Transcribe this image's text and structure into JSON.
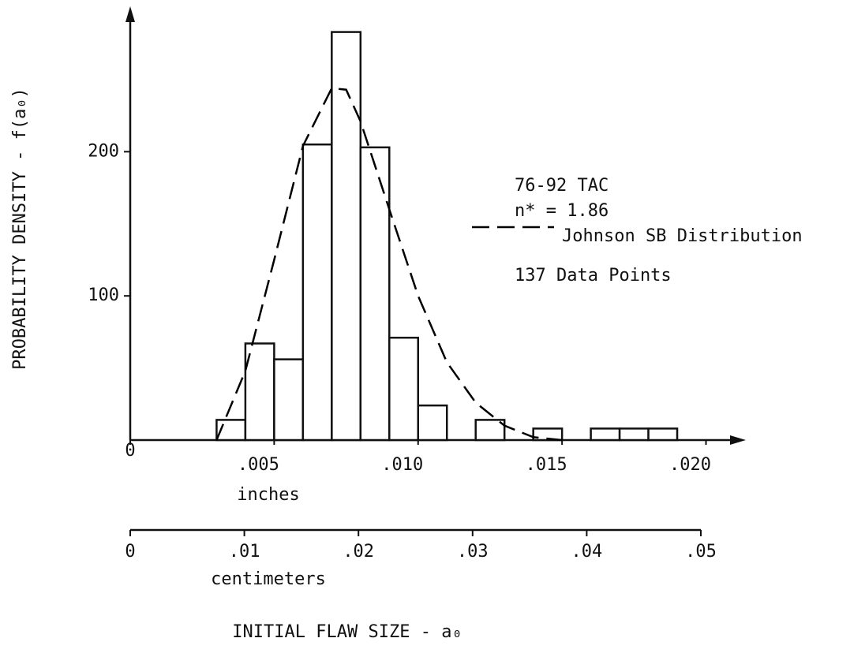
{
  "chart_data": {
    "type": "histogram",
    "bins": [
      0.003,
      0.004,
      0.005,
      0.006,
      0.007,
      0.008,
      0.009,
      0.01,
      0.011,
      0.012,
      0.013,
      0.014,
      0.015,
      0.016,
      0.017,
      0.018,
      0.019
    ],
    "values": [
      14,
      67,
      56,
      205,
      283,
      203,
      71,
      24,
      0,
      14,
      0,
      8,
      0,
      8,
      8,
      8
    ],
    "color": "#ffffff",
    "xlim": [
      0,
      0.021
    ],
    "xticks": [
      0,
      {
        "value": 0.005,
        "label": ".005"
      },
      {
        "value": 0.01,
        "label": ".010"
      },
      {
        "value": 0.015,
        "label": ".015"
      },
      {
        "value": 0.02,
        "label": ".020"
      }
    ],
    "x_label": "inches",
    "ylim": [
      0,
      297
    ],
    "yticks": [
      100,
      200
    ],
    "y_label": "PROBABILITY DENSITY - f(a₀)",
    "x2lim": [
      0,
      0.05
    ],
    "x2ticks": [
      0,
      {
        "value": 0.01,
        "label": ".01"
      },
      {
        "value": 0.02,
        "label": ".02"
      },
      {
        "value": 0.03,
        "label": ".03"
      },
      {
        "value": 0.04,
        "label": ".04"
      },
      {
        "value": 0.05,
        "label": ".05"
      }
    ],
    "x2_label": "centimeters",
    "x_title": "INITIAL FLAW SIZE - a₀",
    "annotations": [
      "76-92 TAC",
      "n* = 1.86",
      "137 Data Points"
    ],
    "curve": {
      "name": "Johnson SB Distribution",
      "color": "#000000",
      "x": [
        0.003,
        0.004,
        0.005,
        0.006,
        0.007,
        0.0075,
        0.008,
        0.009,
        0.01,
        0.011,
        0.012,
        0.013,
        0.014,
        0.015
      ],
      "values": [
        0,
        48,
        125,
        204,
        244,
        243,
        221,
        160,
        100,
        54,
        26,
        10,
        2,
        0
      ]
    }
  }
}
